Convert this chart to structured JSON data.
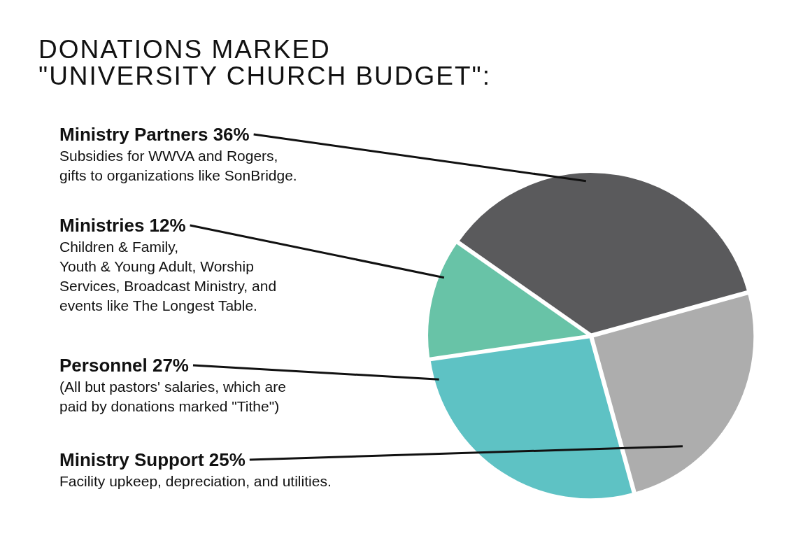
{
  "chart_data": {
    "type": "pie",
    "title": "DONATIONS MARKED\n\"UNIVERSITY CHURCH BUDGET\":",
    "categories": [
      "Ministry Partners",
      "Ministry Support",
      "Personnel",
      "Ministries"
    ],
    "values": [
      36,
      25,
      27,
      12
    ],
    "value_labels": [
      "36%",
      "25%",
      "27%",
      "12%"
    ],
    "colors": [
      "#5a5a5c",
      "#adadad",
      "#5ec2c4",
      "#68c3a7"
    ],
    "annotations": [
      "Subsidies for WWVA and Rogers,\ngifts to organizations like SonBridge.",
      "Facility upkeep, depreciation, and utilities.",
      "(All but pastors' salaries, which are\npaid by donations marked \"Tithe\")",
      "Children & Family,\nYouth & Young Adult, Worship\nServices, Broadcast Ministry, and\nevents like The Longest Table."
    ],
    "legend": false
  }
}
